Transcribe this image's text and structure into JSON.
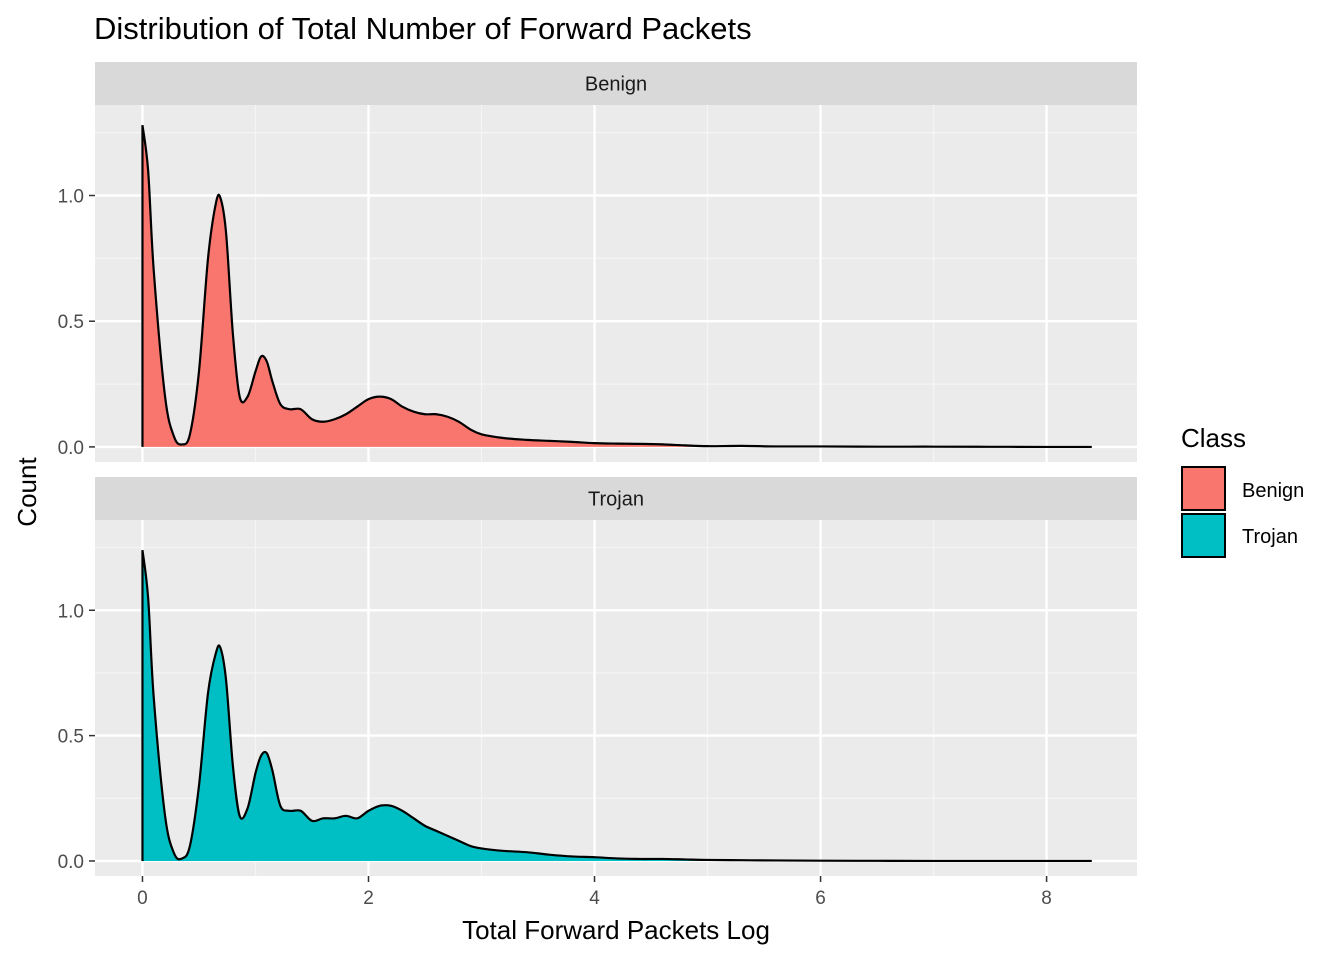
{
  "chart_data": {
    "type": "area",
    "title": "Distribution of Total Number of Forward Packets",
    "xlabel": "Total Forward Packets Log",
    "ylabel": "Count",
    "xlim": [
      -0.42,
      8.8
    ],
    "ylim": [
      -0.06,
      1.36
    ],
    "x_ticks": [
      0,
      2,
      4,
      6,
      8
    ],
    "x_tick_labels": [
      "0",
      "2",
      "4",
      "6",
      "8"
    ],
    "y_ticks": [
      0.0,
      0.5,
      1.0
    ],
    "y_tick_labels": [
      "0.0",
      "0.5",
      "1.0"
    ],
    "grid": true,
    "facet_by": "Class",
    "legend": {
      "title": "Class",
      "position": "right",
      "entries": [
        {
          "label": "Benign",
          "color": "#F8766D"
        },
        {
          "label": "Trojan",
          "color": "#00BFC4"
        }
      ]
    },
    "series": [
      {
        "name": "Benign",
        "color": "#F8766D",
        "x": [
          0,
          0.05,
          0.1,
          0.2,
          0.28,
          0.35,
          0.42,
          0.5,
          0.58,
          0.65,
          0.69,
          0.74,
          0.8,
          0.86,
          0.93,
          1.0,
          1.05,
          1.1,
          1.15,
          1.22,
          1.3,
          1.4,
          1.5,
          1.6,
          1.7,
          1.8,
          1.9,
          2.0,
          2.1,
          2.2,
          2.3,
          2.4,
          2.5,
          2.6,
          2.7,
          2.8,
          2.9,
          3.0,
          3.2,
          3.4,
          3.6,
          3.8,
          4.0,
          4.2,
          4.4,
          4.6,
          4.8,
          5.0,
          5.3,
          5.6,
          6.0,
          6.5,
          7.0,
          7.5,
          8.0,
          8.4
        ],
        "y": [
          1.28,
          1.1,
          0.7,
          0.2,
          0.04,
          0.01,
          0.05,
          0.3,
          0.75,
          0.97,
          0.99,
          0.85,
          0.45,
          0.2,
          0.2,
          0.3,
          0.36,
          0.34,
          0.26,
          0.17,
          0.15,
          0.15,
          0.11,
          0.1,
          0.11,
          0.13,
          0.16,
          0.19,
          0.2,
          0.19,
          0.16,
          0.14,
          0.13,
          0.13,
          0.12,
          0.1,
          0.07,
          0.05,
          0.035,
          0.028,
          0.024,
          0.02,
          0.015,
          0.013,
          0.012,
          0.01,
          0.006,
          0.003,
          0.004,
          0.002,
          0.002,
          0.001,
          0.001,
          0.0005,
          0.0,
          0.0
        ]
      },
      {
        "name": "Trojan",
        "color": "#00BFC4",
        "x": [
          0,
          0.05,
          0.1,
          0.2,
          0.28,
          0.35,
          0.42,
          0.5,
          0.58,
          0.65,
          0.69,
          0.74,
          0.8,
          0.86,
          0.93,
          1.0,
          1.05,
          1.1,
          1.15,
          1.22,
          1.3,
          1.4,
          1.5,
          1.6,
          1.7,
          1.8,
          1.9,
          2.0,
          2.1,
          2.2,
          2.3,
          2.4,
          2.5,
          2.6,
          2.7,
          2.8,
          2.9,
          3.0,
          3.2,
          3.4,
          3.6,
          3.8,
          4.0,
          4.2,
          4.4,
          4.6,
          4.8,
          5.0,
          5.3,
          5.6,
          6.0,
          6.5,
          7.0,
          7.5,
          8.0,
          8.4
        ],
        "y": [
          1.24,
          1.05,
          0.65,
          0.18,
          0.03,
          0.01,
          0.06,
          0.3,
          0.67,
          0.83,
          0.85,
          0.72,
          0.38,
          0.18,
          0.21,
          0.35,
          0.42,
          0.43,
          0.36,
          0.22,
          0.2,
          0.2,
          0.16,
          0.17,
          0.17,
          0.18,
          0.17,
          0.2,
          0.22,
          0.22,
          0.2,
          0.17,
          0.14,
          0.12,
          0.1,
          0.08,
          0.06,
          0.05,
          0.04,
          0.035,
          0.025,
          0.018,
          0.015,
          0.01,
          0.008,
          0.008,
          0.006,
          0.004,
          0.003,
          0.002,
          0.001,
          0.0005,
          0.0,
          0.0,
          0.0,
          0.0
        ]
      }
    ]
  }
}
